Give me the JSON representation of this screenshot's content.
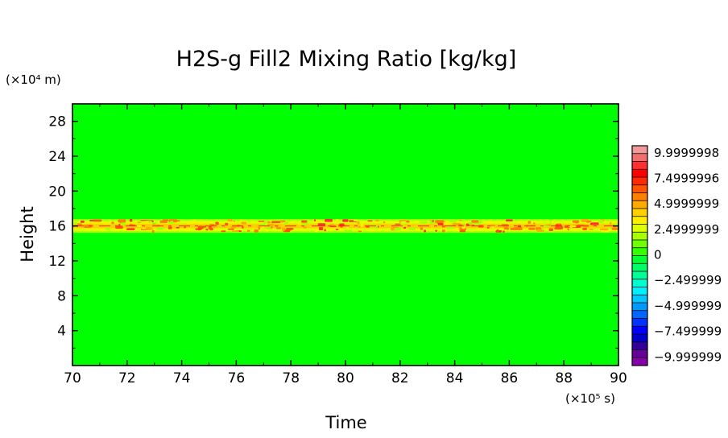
{
  "chart_data": {
    "type": "heatmap",
    "title": "H2S-g Fill2 Mixing Ratio [kg/kg]",
    "xlabel": "Time",
    "ylabel": "Height",
    "x_unit": "(×10⁵ s)",
    "y_unit": "(×10⁴ m)",
    "xlim": [
      70,
      90
    ],
    "ylim": [
      0,
      30
    ],
    "x_ticks": [
      "70",
      "72",
      "74",
      "76",
      "78",
      "80",
      "82",
      "84",
      "86",
      "88",
      "90"
    ],
    "y_ticks": [
      "4",
      "8",
      "12",
      "16",
      "20",
      "24",
      "28"
    ],
    "grid": false,
    "field": {
      "background_value": 0,
      "band": {
        "center_height": 16,
        "half_width": 0.6,
        "typical_value": 3.5,
        "max_value": 9.9999998
      }
    },
    "colorbar": {
      "location": "right",
      "labels": [
        "9.9999998",
        "7.4999996",
        "4.9999999",
        "2.4999999",
        "0",
        "−2.499999",
        "−4.999999",
        "−7.499999",
        "−9.999999"
      ],
      "colors": [
        "#f09a9a",
        "#f07070",
        "#ff3030",
        "#ff0000",
        "#ff2a00",
        "#ff5500",
        "#ff8000",
        "#ffaa00",
        "#ffd000",
        "#ffee00",
        "#ddff00",
        "#a8ff00",
        "#70ff00",
        "#33ff00",
        "#00ff33",
        "#00ff66",
        "#00ff99",
        "#00ffcc",
        "#00f0ff",
        "#00c8ff",
        "#0099ff",
        "#0066ff",
        "#0033ff",
        "#0000ff",
        "#0000cc",
        "#330099",
        "#660099",
        "#8800aa"
      ]
    }
  }
}
